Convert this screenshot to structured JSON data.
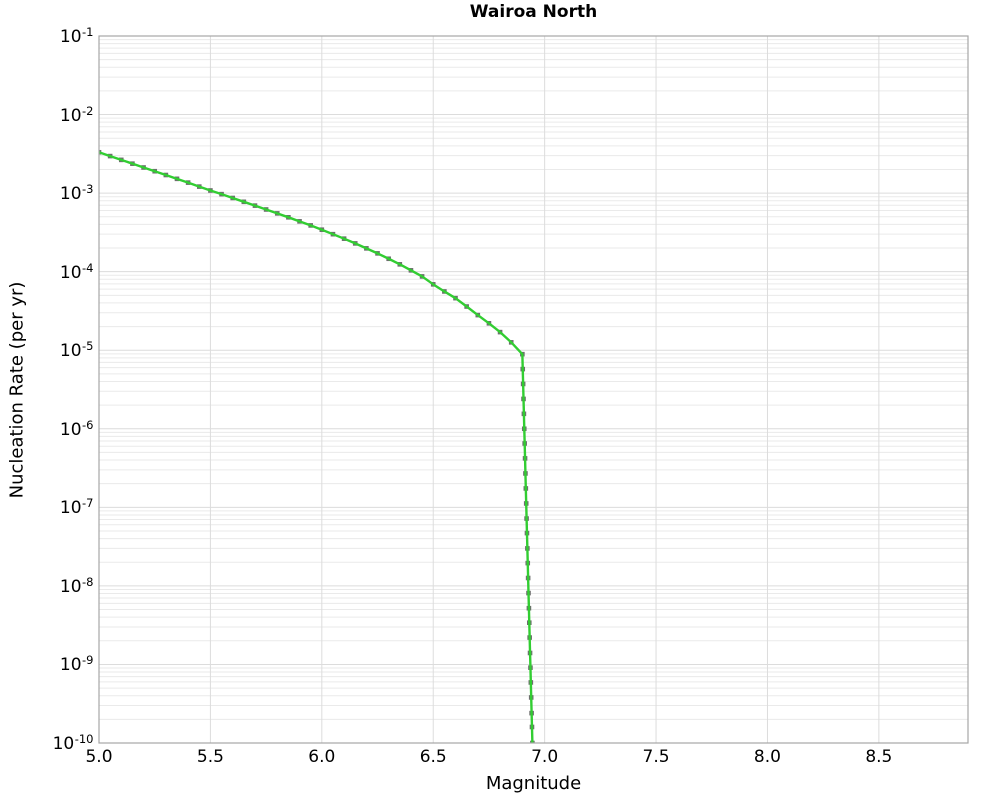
{
  "chart_data": {
    "type": "line",
    "title": "Wairoa North",
    "xlabel": "Magnitude",
    "ylabel": "Nucleation Rate (per yr)",
    "xlim": [
      5.0,
      8.9
    ],
    "ylog_lim_exponents": [
      -10,
      -1
    ],
    "y_scale": "log",
    "grid": "horizontal log minors + decade majors, vertical majors at 0.5 steps",
    "legend": "none",
    "x_ticks": [
      5.0,
      5.5,
      6.0,
      6.5,
      7.0,
      7.5,
      8.0,
      8.5
    ],
    "x_tick_labels": [
      "5.0",
      "5.5",
      "6.0",
      "6.5",
      "7.0",
      "7.5",
      "8.0",
      "8.5"
    ],
    "y_tick_base": "10",
    "y_tick_exponents": [
      "-1",
      "-2",
      "-3",
      "-4",
      "-5",
      "-6",
      "-7",
      "-8",
      "-9",
      "-10"
    ],
    "colors": {
      "line": "#32cd32",
      "marker": "#6e6e6e",
      "grid_minor": "#eaeaea",
      "grid_major": "#dcdcdc",
      "frame": "#a6a6a6",
      "text": "#000000"
    },
    "series": [
      {
        "name": "nucleation-rate-curve",
        "marker": "square",
        "points": [
          [
            5.0,
            0.00331
          ],
          [
            5.05,
            0.00296
          ],
          [
            5.1,
            0.00265
          ],
          [
            5.15,
            0.00237
          ],
          [
            5.2,
            0.00212
          ],
          [
            5.25,
            0.0019
          ],
          [
            5.3,
            0.0017
          ],
          [
            5.35,
            0.00152
          ],
          [
            5.4,
            0.00136
          ],
          [
            5.45,
            0.00121
          ],
          [
            5.5,
            0.00108
          ],
          [
            5.55,
            0.00097
          ],
          [
            5.6,
            0.000867
          ],
          [
            5.65,
            0.000775
          ],
          [
            5.7,
            0.000693
          ],
          [
            5.75,
            0.000619
          ],
          [
            5.8,
            0.000552
          ],
          [
            5.85,
            0.000492
          ],
          [
            5.9,
            0.000437
          ],
          [
            5.95,
            0.000388
          ],
          [
            6.0,
            0.000342
          ],
          [
            6.05,
            0.0003
          ],
          [
            6.1,
            0.000263
          ],
          [
            6.15,
            0.000229
          ],
          [
            6.2,
            0.000198
          ],
          [
            6.25,
            0.000171
          ],
          [
            6.3,
            0.000146
          ],
          [
            6.35,
            0.000124
          ],
          [
            6.4,
            0.000104
          ],
          [
            6.45,
            8.7e-05
          ],
          [
            6.5,
            6.9e-05
          ],
          [
            6.55,
            5.6e-05
          ],
          [
            6.6,
            4.6e-05
          ],
          [
            6.65,
            3.6e-05
          ],
          [
            6.7,
            2.8e-05
          ],
          [
            6.75,
            2.2e-05
          ],
          [
            6.8,
            1.7e-05
          ],
          [
            6.85,
            1.26e-05
          ],
          [
            6.9,
            8.9e-06
          ],
          [
            6.9017,
            5.75e-06
          ],
          [
            6.9035,
            3.72e-06
          ],
          [
            6.9052,
            2.4e-06
          ],
          [
            6.9069,
            1.55e-06
          ],
          [
            6.9086,
            1e-06
          ],
          [
            6.9104,
            6.5e-07
          ],
          [
            6.9121,
            4.2e-07
          ],
          [
            6.9138,
            2.7e-07
          ],
          [
            6.9155,
            1.74e-07
          ],
          [
            6.9173,
            1.12e-07
          ],
          [
            6.919,
            7.2e-08
          ],
          [
            6.9207,
            4.7e-08
          ],
          [
            6.9225,
            3e-08
          ],
          [
            6.9242,
            1.95e-08
          ],
          [
            6.9259,
            1.26e-08
          ],
          [
            6.9276,
            8.1e-09
          ],
          [
            6.9294,
            5.2e-09
          ],
          [
            6.9311,
            3.4e-09
          ],
          [
            6.9328,
            2.2e-09
          ],
          [
            6.9345,
            1.4e-09
          ],
          [
            6.9363,
            9.1e-10
          ],
          [
            6.938,
            5.9e-10
          ],
          [
            6.9397,
            3.8e-10
          ],
          [
            6.9415,
            2.4e-10
          ],
          [
            6.9432,
            1.6e-10
          ],
          [
            6.945,
            1e-10
          ]
        ]
      }
    ]
  }
}
